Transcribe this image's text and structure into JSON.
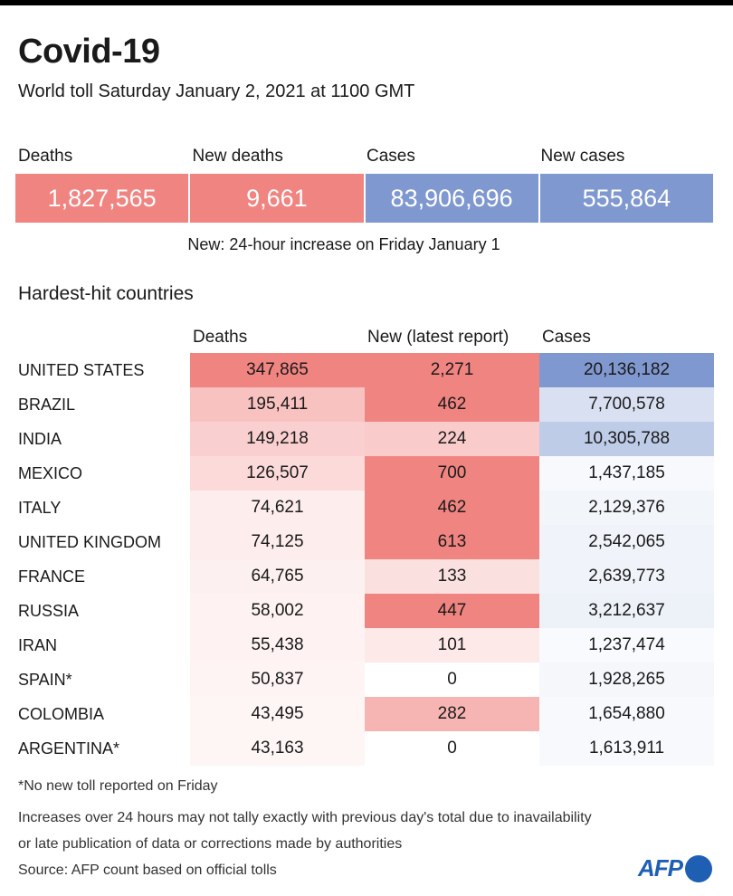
{
  "title": "Covid-19",
  "subtitle": "World toll Saturday January 2, 2021 at 1100 GMT",
  "colors": {
    "death_strong": "#f08481",
    "case_strong": "#7f98d0"
  },
  "summary": {
    "labels": [
      "Deaths",
      "New deaths",
      "Cases",
      "New cases"
    ],
    "values": [
      "1,827,565",
      "9,661",
      "83,906,696",
      "555,864"
    ],
    "note": "New: 24-hour increase on Friday January 1"
  },
  "section_title": "Hardest-hit countries",
  "columns": {
    "deaths": "Deaths",
    "new": "New (latest report)",
    "cases": "Cases"
  },
  "rows": [
    {
      "country": "UNITED STATES",
      "deaths": "347,865",
      "new": "2,271",
      "cases": "20,136,182",
      "d_shade": 1.0,
      "n_shade": 1.0,
      "c_shade": 1.0
    },
    {
      "country": "BRAZIL",
      "deaths": "195,411",
      "new": "462",
      "cases": "7,700,578",
      "d_shade": 0.5,
      "n_shade": 1.0,
      "c_shade": 0.3
    },
    {
      "country": "INDIA",
      "deaths": "149,218",
      "new": "224",
      "cases": "10,305,788",
      "d_shade": 0.38,
      "n_shade": 0.42,
      "c_shade": 0.5
    },
    {
      "country": "MEXICO",
      "deaths": "126,507",
      "new": "700",
      "cases": "1,437,185",
      "d_shade": 0.3,
      "n_shade": 1.0,
      "c_shade": 0.06
    },
    {
      "country": "ITALY",
      "deaths": "74,621",
      "new": "462",
      "cases": "2,129,376",
      "d_shade": 0.15,
      "n_shade": 1.0,
      "c_shade": 0.1
    },
    {
      "country": "UNITED KINGDOM",
      "deaths": "74,125",
      "new": "613",
      "cases": "2,542,065",
      "d_shade": 0.15,
      "n_shade": 1.0,
      "c_shade": 0.12
    },
    {
      "country": "FRANCE",
      "deaths": "64,765",
      "new": "133",
      "cases": "2,639,773",
      "d_shade": 0.12,
      "n_shade": 0.25,
      "c_shade": 0.12
    },
    {
      "country": "RUSSIA",
      "deaths": "58,002",
      "new": "447",
      "cases": "3,212,637",
      "d_shade": 0.1,
      "n_shade": 1.0,
      "c_shade": 0.14
    },
    {
      "country": "IRAN",
      "deaths": "55,438",
      "new": "101",
      "cases": "1,237,474",
      "d_shade": 0.1,
      "n_shade": 0.18,
      "c_shade": 0.05
    },
    {
      "country": "SPAIN*",
      "deaths": "50,837",
      "new": "0",
      "cases": "1,928,265",
      "d_shade": 0.09,
      "n_shade": 0.0,
      "c_shade": 0.08
    },
    {
      "country": "COLOMBIA",
      "deaths": "43,495",
      "new": "282",
      "cases": "1,654,880",
      "d_shade": 0.08,
      "n_shade": 0.6,
      "c_shade": 0.06
    },
    {
      "country": "ARGENTINA*",
      "deaths": "43,163",
      "new": "0",
      "cases": "1,613,911",
      "d_shade": 0.08,
      "n_shade": 0.0,
      "c_shade": 0.06
    }
  ],
  "footnotes": {
    "asterisk": "*No new toll reported on Friday",
    "line1": "Increases over 24 hours may not tally exactly with previous day's total due to inavailability",
    "line2": "or late publication of data or corrections made by authorities",
    "source": "Source: AFP count based on official tolls"
  },
  "logo": "AFP"
}
